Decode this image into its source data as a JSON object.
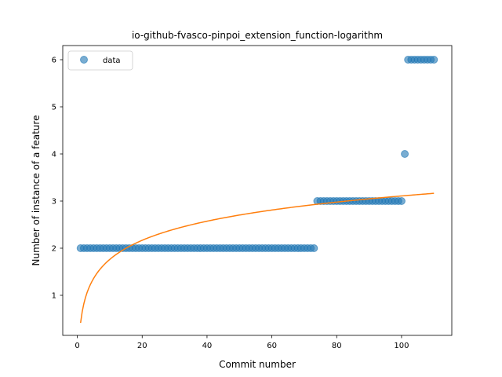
{
  "chart_data": {
    "type": "scatter",
    "title": "io-github-fvasco-pinpoi_extension_function-logarithm",
    "xlabel": "Commit number",
    "ylabel": "Number of instance of a feature",
    "xlim": [
      -4.5,
      115.5
    ],
    "ylim": [
      0.15,
      6.3
    ],
    "xticks": [
      0,
      20,
      40,
      60,
      80,
      100
    ],
    "yticks": [
      1,
      2,
      3,
      4,
      5,
      6
    ],
    "grid": false,
    "legend": {
      "placement": "top-left",
      "entries": [
        "data"
      ]
    },
    "series": [
      {
        "name": "data",
        "kind": "scatter",
        "color": "#1f77b4",
        "segments": [
          {
            "x_from": 1,
            "x_to": 73,
            "y": 2
          },
          {
            "x_from": 74,
            "x_to": 100,
            "y": 3
          },
          {
            "x_from": 101,
            "x_to": 101,
            "y": 4
          },
          {
            "x_from": 102,
            "x_to": 110,
            "y": 6
          }
        ]
      },
      {
        "kind": "line",
        "color": "#ff7f0e",
        "fit": {
          "form": "a*ln(x)+b",
          "a": 0.5848,
          "b": 0.4155,
          "x_from": 1,
          "x_to": 110
        }
      }
    ]
  }
}
